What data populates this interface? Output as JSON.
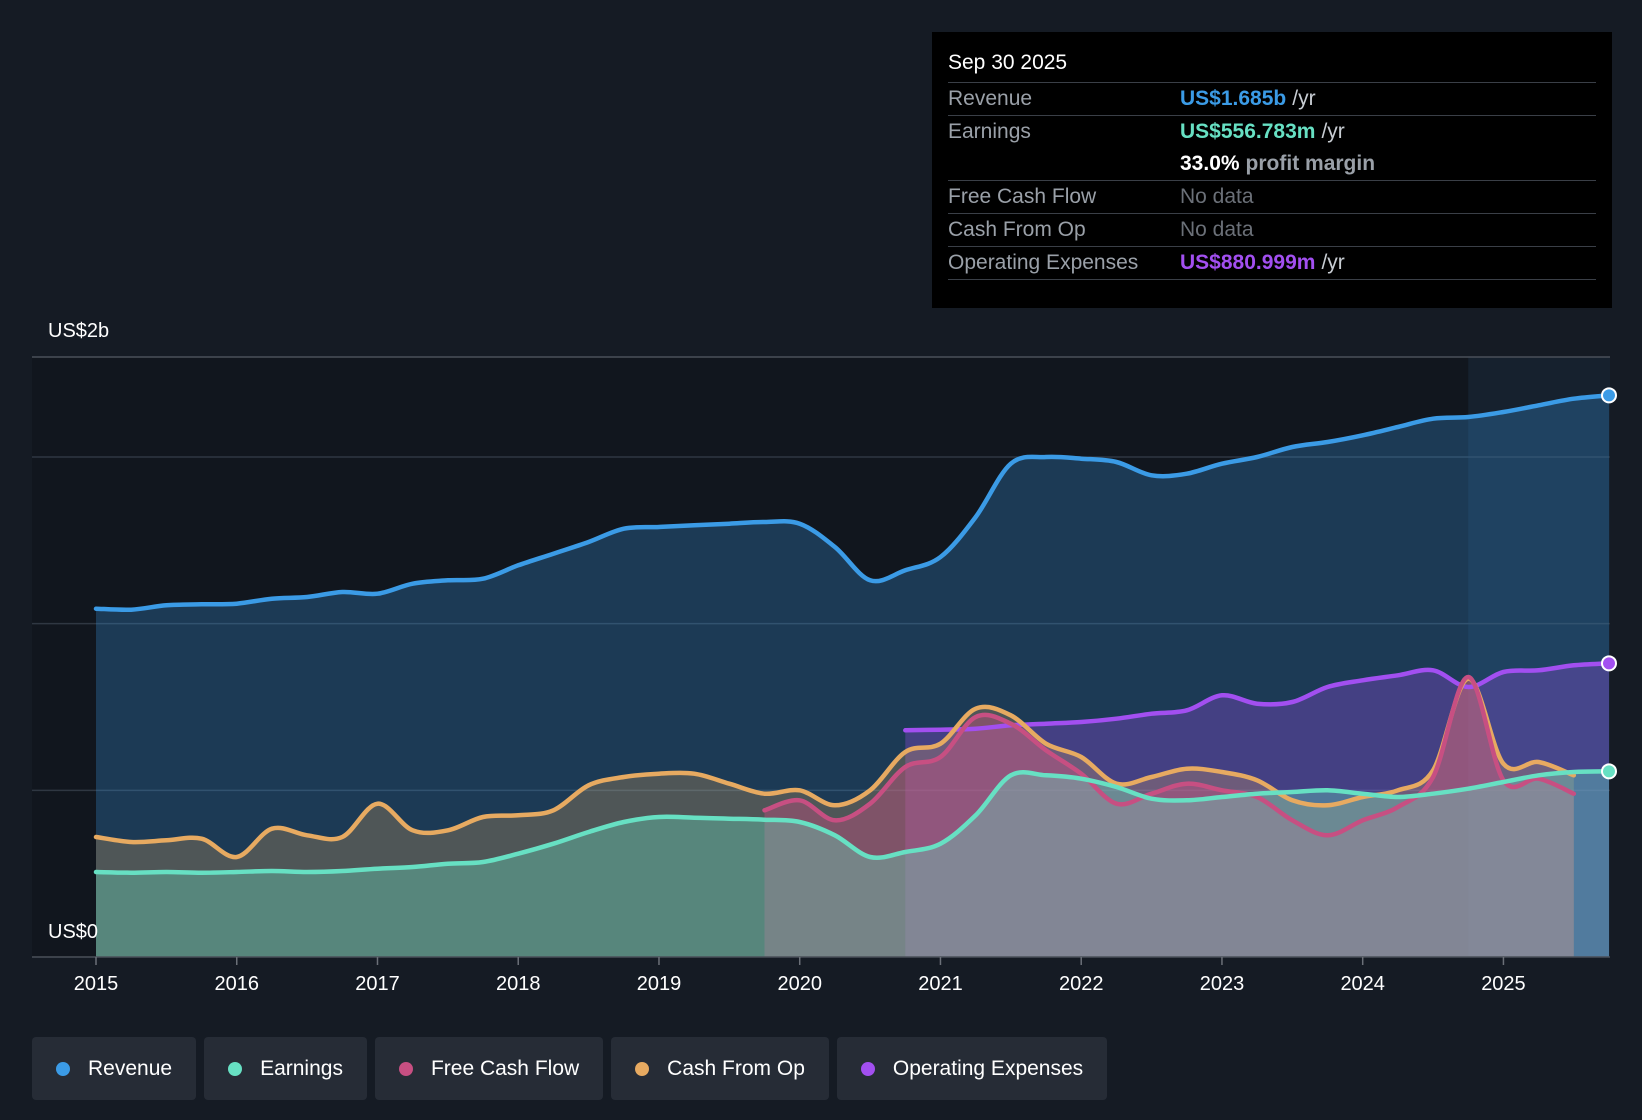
{
  "tooltip": {
    "date": "Sep 30 2025",
    "rows": [
      {
        "key": "Revenue",
        "value": "US$1.685b",
        "unit": "/yr",
        "color": "#3b9be6"
      },
      {
        "key": "Earnings",
        "value": "US$556.783m",
        "unit": "/yr",
        "color": "#67e0c3"
      },
      {
        "key": "",
        "value": "33.0%",
        "unit": "profit margin",
        "color": "#ffffff"
      },
      {
        "key": "Free Cash Flow",
        "value": "No data",
        "unit": "",
        "color": ""
      },
      {
        "key": "Cash From Op",
        "value": "No data",
        "unit": "",
        "color": ""
      },
      {
        "key": "Operating Expenses",
        "value": "US$880.999m",
        "unit": "/yr",
        "color": "#a24ff0"
      }
    ]
  },
  "legend": [
    {
      "label": "Revenue",
      "color": "#3b9be6"
    },
    {
      "label": "Earnings",
      "color": "#67e0c3"
    },
    {
      "label": "Free Cash Flow",
      "color": "#c74f82"
    },
    {
      "label": "Cash From Op",
      "color": "#e7aa61"
    },
    {
      "label": "Operating Expenses",
      "color": "#a24ff0"
    }
  ],
  "chart_data": {
    "type": "area",
    "title": "",
    "xlabel": "",
    "ylabel": "",
    "y_top_label": "US$2b",
    "y_bottom_label": "US$0",
    "xlim": [
      2015,
      2025.75
    ],
    "ylim": [
      0,
      1.8
    ],
    "gridlines": [
      0.5,
      1.0,
      1.5
    ],
    "x_ticks": [
      2015,
      2016,
      2017,
      2018,
      2019,
      2020,
      2021,
      2022,
      2023,
      2024,
      2025
    ],
    "x_tick_labels": [
      "2015",
      "2016",
      "2017",
      "2018",
      "2019",
      "2020",
      "2021",
      "2022",
      "2023",
      "2024",
      "2025"
    ],
    "highlight_start": 2024.75,
    "series": [
      {
        "name": "Revenue",
        "color": "#3b9be6",
        "fill": true,
        "end_marker": true,
        "x": [
          2015,
          2015.25,
          2015.5,
          2015.75,
          2016,
          2016.25,
          2016.5,
          2016.75,
          2017,
          2017.25,
          2017.5,
          2017.75,
          2018,
          2018.25,
          2018.5,
          2018.75,
          2019,
          2019.25,
          2019.5,
          2019.75,
          2020,
          2020.25,
          2020.5,
          2020.75,
          2021,
          2021.25,
          2021.5,
          2021.75,
          2022,
          2022.25,
          2022.5,
          2022.75,
          2023,
          2023.25,
          2023.5,
          2023.75,
          2024,
          2024.25,
          2024.5,
          2024.75,
          2025,
          2025.25,
          2025.5,
          2025.75
        ],
        "values": [
          1.045,
          1.042,
          1.055,
          1.058,
          1.06,
          1.075,
          1.08,
          1.095,
          1.09,
          1.12,
          1.13,
          1.135,
          1.175,
          1.21,
          1.245,
          1.285,
          1.29,
          1.295,
          1.3,
          1.305,
          1.3,
          1.23,
          1.13,
          1.16,
          1.2,
          1.32,
          1.48,
          1.5,
          1.495,
          1.485,
          1.445,
          1.45,
          1.48,
          1.5,
          1.53,
          1.545,
          1.565,
          1.59,
          1.615,
          1.62,
          1.635,
          1.655,
          1.675,
          1.685
        ]
      },
      {
        "name": "Earnings",
        "color": "#67e0c3",
        "fill": true,
        "end_marker": true,
        "x": [
          2015,
          2015.25,
          2015.5,
          2015.75,
          2016,
          2016.25,
          2016.5,
          2016.75,
          2017,
          2017.25,
          2017.5,
          2017.75,
          2018,
          2018.25,
          2018.5,
          2018.75,
          2019,
          2019.25,
          2019.5,
          2019.75,
          2020,
          2020.25,
          2020.5,
          2020.75,
          2021,
          2021.25,
          2021.5,
          2021.75,
          2022,
          2022.25,
          2022.5,
          2022.75,
          2023,
          2023.25,
          2023.5,
          2023.75,
          2024,
          2024.25,
          2024.5,
          2024.75,
          2025,
          2025.25,
          2025.5,
          2025.75
        ],
        "values": [
          0.255,
          0.253,
          0.255,
          0.253,
          0.255,
          0.258,
          0.255,
          0.258,
          0.265,
          0.27,
          0.28,
          0.285,
          0.31,
          0.34,
          0.375,
          0.405,
          0.42,
          0.418,
          0.415,
          0.412,
          0.405,
          0.365,
          0.3,
          0.315,
          0.34,
          0.425,
          0.545,
          0.545,
          0.535,
          0.51,
          0.475,
          0.47,
          0.48,
          0.49,
          0.495,
          0.5,
          0.49,
          0.48,
          0.49,
          0.505,
          0.525,
          0.545,
          0.555,
          0.557
        ]
      },
      {
        "name": "Free Cash Flow",
        "color": "#c74f82",
        "fill": true,
        "end_marker": false,
        "x": [
          2019.75,
          2020,
          2020.25,
          2020.5,
          2020.75,
          2021,
          2021.25,
          2021.5,
          2021.75,
          2022,
          2022.25,
          2022.5,
          2022.75,
          2023,
          2023.25,
          2023.5,
          2023.75,
          2024,
          2024.25,
          2024.5,
          2024.75,
          2025,
          2025.25,
          2025.5
        ],
        "values": [
          0.44,
          0.47,
          0.41,
          0.46,
          0.57,
          0.6,
          0.72,
          0.7,
          0.62,
          0.55,
          0.46,
          0.49,
          0.52,
          0.5,
          0.48,
          0.41,
          0.365,
          0.41,
          0.45,
          0.54,
          0.84,
          0.53,
          0.535,
          0.49
        ]
      },
      {
        "name": "Cash From Op",
        "color": "#e7aa61",
        "fill": true,
        "end_marker": false,
        "x": [
          2015,
          2015.25,
          2015.5,
          2015.75,
          2016,
          2016.25,
          2016.5,
          2016.75,
          2017,
          2017.25,
          2017.5,
          2017.75,
          2018,
          2018.25,
          2018.5,
          2018.75,
          2019,
          2019.25,
          2019.5,
          2019.75,
          2020,
          2020.25,
          2020.5,
          2020.75,
          2021,
          2021.25,
          2021.5,
          2021.75,
          2022,
          2022.25,
          2022.5,
          2022.75,
          2023,
          2023.25,
          2023.5,
          2023.75,
          2024,
          2024.25,
          2024.5,
          2024.75,
          2025,
          2025.25,
          2025.5
        ],
        "values": [
          0.36,
          0.345,
          0.35,
          0.355,
          0.3,
          0.385,
          0.365,
          0.36,
          0.46,
          0.38,
          0.38,
          0.42,
          0.425,
          0.44,
          0.515,
          0.54,
          0.55,
          0.55,
          0.52,
          0.49,
          0.5,
          0.455,
          0.5,
          0.615,
          0.64,
          0.745,
          0.725,
          0.64,
          0.6,
          0.52,
          0.54,
          0.565,
          0.555,
          0.53,
          0.47,
          0.455,
          0.48,
          0.5,
          0.56,
          0.835,
          0.58,
          0.585,
          0.545
        ]
      },
      {
        "name": "Operating Expenses",
        "color": "#a24ff0",
        "fill": true,
        "end_marker": true,
        "x": [
          2020.75,
          2021,
          2021.25,
          2021.5,
          2021.75,
          2022,
          2022.25,
          2022.5,
          2022.75,
          2023,
          2023.25,
          2023.5,
          2023.75,
          2024,
          2024.25,
          2024.5,
          2024.75,
          2025,
          2025.25,
          2025.5,
          2025.75
        ],
        "values": [
          0.68,
          0.682,
          0.685,
          0.695,
          0.7,
          0.705,
          0.715,
          0.73,
          0.74,
          0.785,
          0.76,
          0.765,
          0.81,
          0.83,
          0.845,
          0.86,
          0.81,
          0.855,
          0.86,
          0.875,
          0.881
        ]
      }
    ]
  }
}
